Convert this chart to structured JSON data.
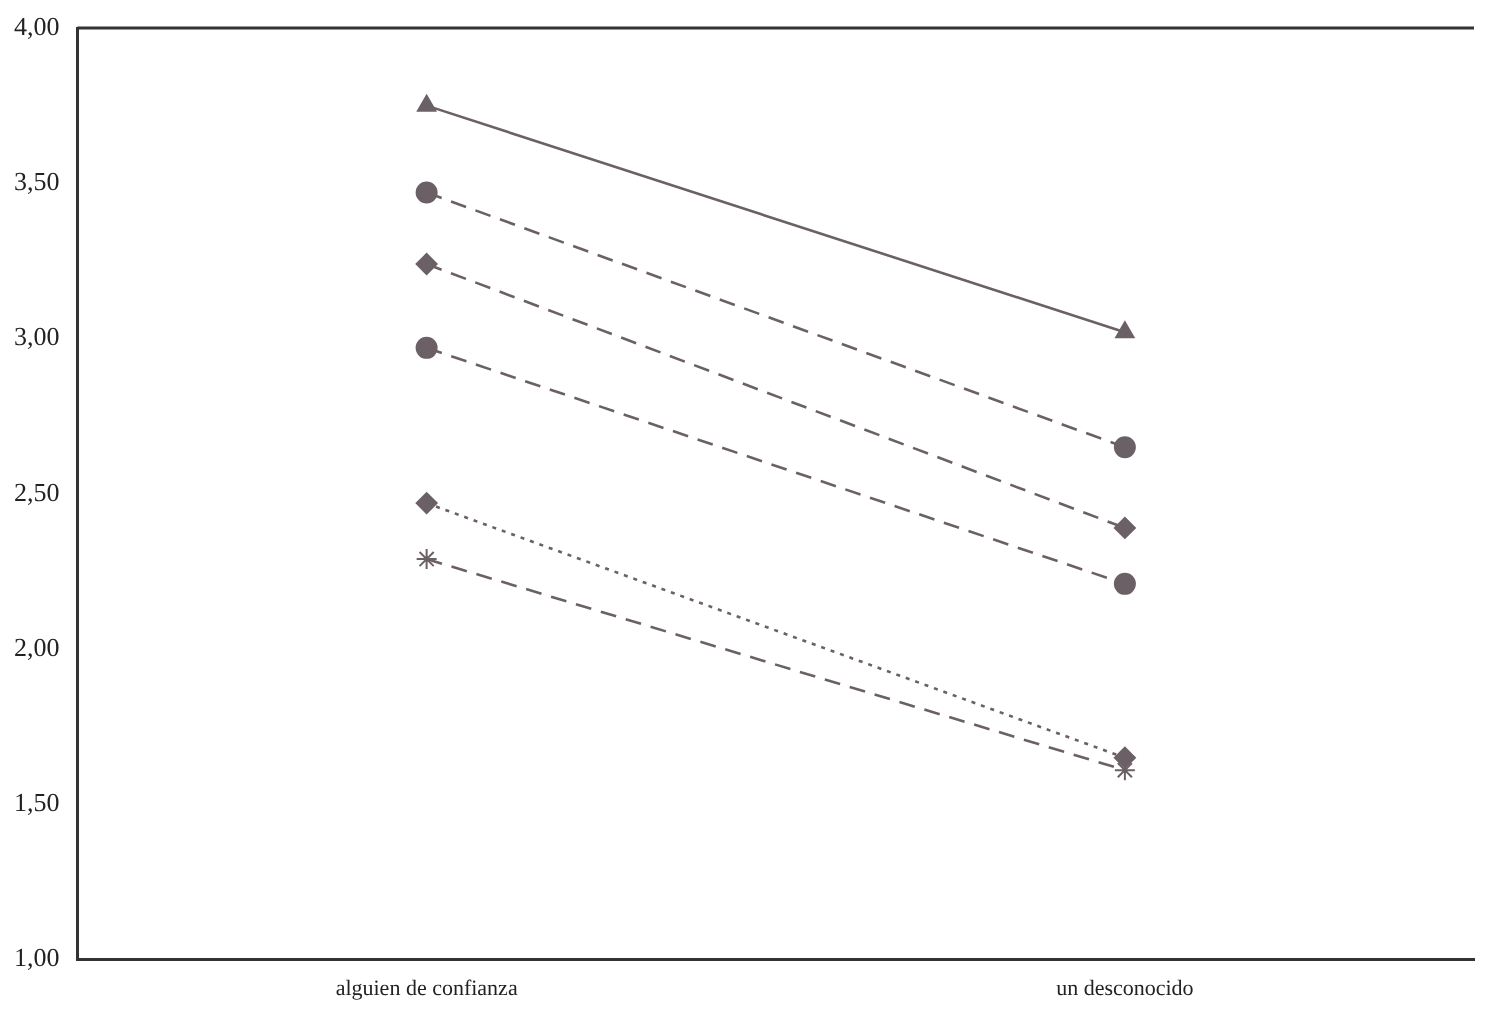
{
  "chart_data": {
    "type": "line",
    "categories": [
      "alguien de confianza",
      "un desconocido"
    ],
    "series": [
      {
        "color": "#6b6066",
        "values": [
          3.75,
          3.02
        ],
        "marker": "triangle",
        "line_style": "solid"
      },
      {
        "color": "#6b6066",
        "values": [
          3.47,
          2.65
        ],
        "marker": "circle",
        "line_style": "dashed"
      },
      {
        "color": "#6b6066",
        "values": [
          3.24,
          2.39
        ],
        "marker": "diamond",
        "line_style": "dashed"
      },
      {
        "color": "#6b6066",
        "values": [
          2.97,
          2.21
        ],
        "marker": "circle",
        "line_style": "dashed"
      },
      {
        "color": "#6b6066",
        "values": [
          2.47,
          1.65
        ],
        "marker": "diamond",
        "line_style": "dotted"
      },
      {
        "color": "#6b6066",
        "values": [
          2.29,
          1.61
        ],
        "marker": "cross",
        "line_style": "dashed"
      }
    ],
    "ylim": [
      1,
      4
    ],
    "yticks": [
      {
        "value": 1,
        "label": "1,00"
      },
      {
        "value": 1.5,
        "label": "1,50"
      },
      {
        "value": 2,
        "label": "2,00"
      },
      {
        "value": 2.5,
        "label": "2,50"
      },
      {
        "value": 3,
        "label": "3,00"
      },
      {
        "value": 3.5,
        "label": "3,50"
      },
      {
        "value": 4,
        "label": "4,00"
      }
    ],
    "grid": false,
    "legend": false
  }
}
